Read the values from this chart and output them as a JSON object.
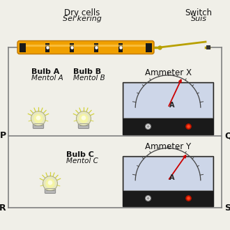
{
  "bg_color": "#f0efe8",
  "title_dry_cells": "Dry cells",
  "title_dry_cells_sub": "Sel kering",
  "title_switch": "Switch",
  "title_switch_sub": "Suis",
  "label_bulb_a": "Bulb A",
  "label_bulb_a_sub": "Mentol A",
  "label_bulb_b": "Bulb B",
  "label_bulb_b_sub": "Mentol B",
  "label_bulb_c": "Bulb C",
  "label_bulb_c_sub": "Mentol C",
  "label_ammeter_x": "Ammeter X",
  "label_ammeter_y": "Ammeter Y",
  "label_p": "P",
  "label_q": "Q",
  "label_r": "R",
  "label_s": "S",
  "battery_color": "#f0a000",
  "battery_dark": "#1a1a1a",
  "wire_color": "#808080",
  "ammeter_face_color": "#cdd6e8",
  "ammeter_body_color": "#1a1a1a",
  "ammeter_needle_color": "#cc0000",
  "switch_color": "#b8a000"
}
